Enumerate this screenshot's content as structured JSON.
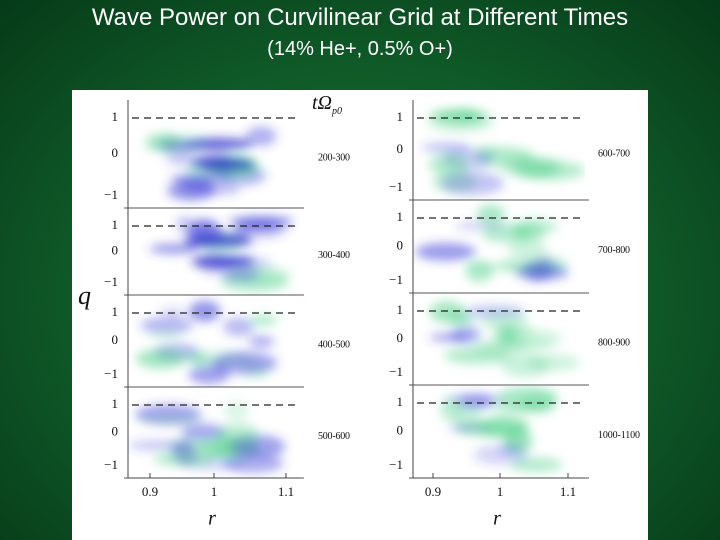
{
  "header": {
    "title": "Wave Power on Curvilinear Grid at Different Times",
    "subtitle": "(14%  He+, 0.5% O+)"
  },
  "figure": {
    "time_label": "tΩ",
    "time_label_sub": "p0",
    "y_label": "q",
    "x_label": "r",
    "y_ticks": [
      "1",
      "0",
      "−1"
    ],
    "x_ticks": [
      "0.9",
      "1",
      "1.1"
    ],
    "columns": [
      {
        "panels": [
          "200-300",
          "300-400",
          "400-500",
          "500-600"
        ]
      },
      {
        "panels": [
          "600-700",
          "700-800",
          "800-900",
          "1000-1100"
        ]
      }
    ]
  }
}
